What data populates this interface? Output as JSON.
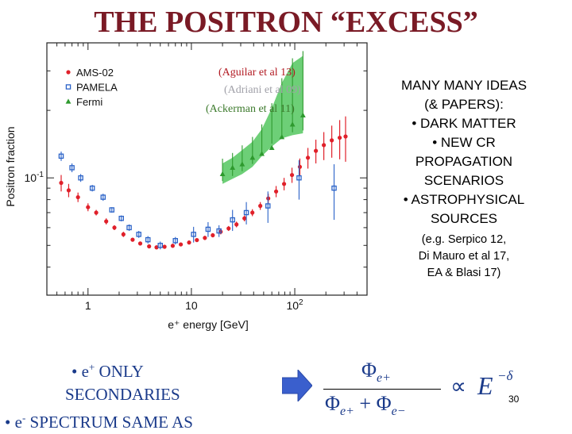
{
  "slide": {
    "title": "THE POSITRON “EXCESS”",
    "page_number": "30"
  },
  "citations": {
    "ams": "(Aguilar et al 13)",
    "pamela": "(Adriani et al 09)",
    "fermi": "(Ackerman et al 11)"
  },
  "right_panel": {
    "line1": "MANY MANY IDEAS",
    "line2": "(& PAPERS):",
    "bullet1": "•  DARK MATTER",
    "bullet2_a": "•  NEW CR",
    "bullet2_b": "PROPAGATION",
    "bullet2_c": "SCENARIOS",
    "bullet3_a": "•  ASTROPHYSICAL",
    "bullet3_b": "SOURCES",
    "refs_a": "(e.g. Serpico 12,",
    "refs_b": "Di Mauro et al 17,",
    "refs_c": "EA & Blasi 17)"
  },
  "bottom_left": {
    "line1_bullet": "•  e",
    "line1_sup": "+",
    "line1_rest": " ONLY",
    "line2": "SECONDARIES",
    "line3_bullet": "•  e",
    "line3_sup": "-",
    "line3_rest": " SPECTRUM SAME AS"
  },
  "formula": {
    "num_phi": "Φ",
    "num_sub": "e+",
    "den_phi1": "Φ",
    "den_sub1": "e+",
    "den_plus": " + ",
    "den_phi2": "Φ",
    "den_sub2": "e−",
    "prop": "∝",
    "E": "E",
    "exp": "−δ"
  },
  "colors": {
    "title": "#7a1a25",
    "ams": "#e0202a",
    "pamela": "#2a62c8",
    "fermi": "#2e9a2e",
    "fermi_band": "#3cbf4a"
  },
  "chart_data": {
    "type": "scatter",
    "title": "",
    "xlabel": "e⁺ energy [GeV]",
    "ylabel": "Positron fraction",
    "xscale": "log",
    "yscale": "log",
    "xlim": [
      0.4,
      500
    ],
    "ylim": [
      0.03,
      0.4
    ],
    "x_ticks": [
      {
        "value": 1,
        "label": "1"
      },
      {
        "value": 10,
        "label": "10"
      },
      {
        "value": 100,
        "label": "10",
        "sup": "2"
      }
    ],
    "y_ticks": [
      {
        "value": 0.1,
        "label": "10",
        "sup": "-1"
      }
    ],
    "legend": [
      "AMS-02",
      "PAMELA",
      "Fermi"
    ],
    "legend_position": "top-left",
    "series": [
      {
        "name": "AMS-02",
        "marker": "circle",
        "points": [
          {
            "x": 0.55,
            "y": 0.095,
            "err": 0.008
          },
          {
            "x": 0.65,
            "y": 0.088,
            "err": 0.006
          },
          {
            "x": 0.8,
            "y": 0.082,
            "err": 0.004
          },
          {
            "x": 1.0,
            "y": 0.074,
            "err": 0.003
          },
          {
            "x": 1.2,
            "y": 0.07,
            "err": 0.002
          },
          {
            "x": 1.5,
            "y": 0.064,
            "err": 0.002
          },
          {
            "x": 1.8,
            "y": 0.06,
            "err": 0.0015
          },
          {
            "x": 2.2,
            "y": 0.056,
            "err": 0.0015
          },
          {
            "x": 2.7,
            "y": 0.053,
            "err": 0.001
          },
          {
            "x": 3.2,
            "y": 0.051,
            "err": 0.001
          },
          {
            "x": 3.9,
            "y": 0.0495,
            "err": 0.001
          },
          {
            "x": 4.6,
            "y": 0.049,
            "err": 0.001
          },
          {
            "x": 5.5,
            "y": 0.0493,
            "err": 0.001
          },
          {
            "x": 6.6,
            "y": 0.0498,
            "err": 0.001
          },
          {
            "x": 7.9,
            "y": 0.0505,
            "err": 0.001
          },
          {
            "x": 9.5,
            "y": 0.0515,
            "err": 0.001
          },
          {
            "x": 11.3,
            "y": 0.0528,
            "err": 0.001
          },
          {
            "x": 13.5,
            "y": 0.054,
            "err": 0.0012
          },
          {
            "x": 16.1,
            "y": 0.0555,
            "err": 0.0012
          },
          {
            "x": 19.2,
            "y": 0.0575,
            "err": 0.0015
          },
          {
            "x": 22.9,
            "y": 0.0595,
            "err": 0.0015
          },
          {
            "x": 27.3,
            "y": 0.062,
            "err": 0.0018
          },
          {
            "x": 32.6,
            "y": 0.066,
            "err": 0.002
          },
          {
            "x": 38.9,
            "y": 0.07,
            "err": 0.0025
          },
          {
            "x": 46.4,
            "y": 0.075,
            "err": 0.003
          },
          {
            "x": 55.4,
            "y": 0.081,
            "err": 0.004
          },
          {
            "x": 66.0,
            "y": 0.087,
            "err": 0.005
          },
          {
            "x": 78.8,
            "y": 0.094,
            "err": 0.006
          },
          {
            "x": 94.0,
            "y": 0.103,
            "err": 0.008
          },
          {
            "x": 112,
            "y": 0.112,
            "err": 0.01
          },
          {
            "x": 134,
            "y": 0.123,
            "err": 0.013
          },
          {
            "x": 160,
            "y": 0.132,
            "err": 0.016
          },
          {
            "x": 191,
            "y": 0.14,
            "err": 0.02
          },
          {
            "x": 228,
            "y": 0.147,
            "err": 0.024
          },
          {
            "x": 272,
            "y": 0.151,
            "err": 0.03
          },
          {
            "x": 310,
            "y": 0.153,
            "err": 0.035
          }
        ]
      },
      {
        "name": "PAMELA",
        "marker": "square",
        "points": [
          {
            "x": 0.55,
            "y": 0.125,
            "err": 0.006
          },
          {
            "x": 0.7,
            "y": 0.111,
            "err": 0.005
          },
          {
            "x": 0.85,
            "y": 0.1,
            "err": 0.004
          },
          {
            "x": 1.1,
            "y": 0.09,
            "err": 0.003
          },
          {
            "x": 1.4,
            "y": 0.082,
            "err": 0.003
          },
          {
            "x": 1.7,
            "y": 0.072,
            "err": 0.002
          },
          {
            "x": 2.1,
            "y": 0.066,
            "err": 0.002
          },
          {
            "x": 2.5,
            "y": 0.06,
            "err": 0.002
          },
          {
            "x": 3.1,
            "y": 0.056,
            "err": 0.002
          },
          {
            "x": 3.8,
            "y": 0.053,
            "err": 0.002
          },
          {
            "x": 5.0,
            "y": 0.05,
            "err": 0.002
          },
          {
            "x": 7.0,
            "y": 0.0525,
            "err": 0.002
          },
          {
            "x": 10.5,
            "y": 0.056,
            "err": 0.0045
          },
          {
            "x": 14.5,
            "y": 0.059,
            "err": 0.0045
          },
          {
            "x": 18.5,
            "y": 0.058,
            "err": 0.0035
          },
          {
            "x": 25.0,
            "y": 0.065,
            "err": 0.007
          },
          {
            "x": 34.0,
            "y": 0.07,
            "err": 0.008
          },
          {
            "x": 55.0,
            "y": 0.075,
            "err": 0.012
          },
          {
            "x": 110,
            "y": 0.1,
            "err": 0.02
          },
          {
            "x": 240,
            "y": 0.09,
            "err": 0.025
          }
        ]
      },
      {
        "name": "Fermi",
        "marker": "triangle",
        "band_low": [
          0.094,
          0.099,
          0.104,
          0.112,
          0.125,
          0.138,
          0.15,
          0.155,
          0.158
        ],
        "band_high": [
          0.116,
          0.123,
          0.133,
          0.145,
          0.165,
          0.205,
          0.265,
          0.325,
          0.35
        ],
        "points": [
          {
            "x": 20.0,
            "y": 0.104
          },
          {
            "x": 25.0,
            "y": 0.111
          },
          {
            "x": 31.0,
            "y": 0.115
          },
          {
            "x": 39.0,
            "y": 0.123
          },
          {
            "x": 48.0,
            "y": 0.128
          },
          {
            "x": 60.0,
            "y": 0.136
          },
          {
            "x": 75.0,
            "y": 0.152
          },
          {
            "x": 95.0,
            "y": 0.173
          },
          {
            "x": 120.0,
            "y": 0.19
          }
        ]
      }
    ]
  }
}
